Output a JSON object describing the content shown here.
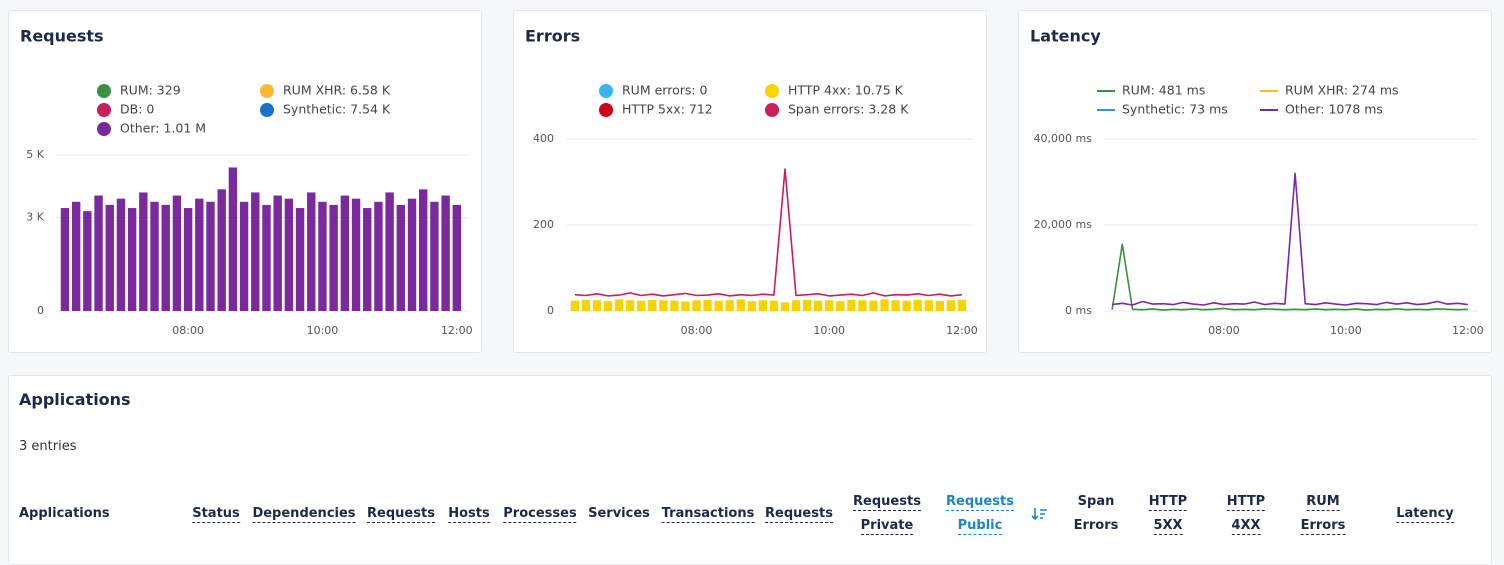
{
  "chart_data": [
    {
      "type": "bar",
      "title": "Requests",
      "legend_marker": "circle",
      "grid": true,
      "xlim": [
        362,
        730
      ],
      "xticks": [
        {
          "value": 480,
          "label": "08:00"
        },
        {
          "value": 600,
          "label": "10:00"
        },
        {
          "value": 720,
          "label": "12:00"
        }
      ],
      "ylim": [
        0,
        5000
      ],
      "yticks": [
        0,
        {
          "value": 3000,
          "label": "3 K"
        },
        {
          "value": 5000,
          "label": "5 K"
        }
      ],
      "x": [
        370,
        380,
        390,
        400,
        410,
        420,
        430,
        440,
        450,
        460,
        470,
        480,
        490,
        500,
        510,
        520,
        530,
        540,
        550,
        560,
        570,
        580,
        590,
        600,
        610,
        620,
        630,
        640,
        650,
        660,
        670,
        680,
        690,
        700,
        710,
        720
      ],
      "series": [
        {
          "name": "RUM: 329",
          "color": "#3a913f"
        },
        {
          "name": "RUM XHR: 6.58 K",
          "color": "#f9b935"
        },
        {
          "name": "DB: 0",
          "color": "#c8205c"
        },
        {
          "name": "Synthetic: 7.54 K",
          "color": "#1a73c9"
        },
        {
          "name": "Other: 1.01 M",
          "color": "#7b2a9e",
          "values": [
            3300,
            3500,
            3200,
            3700,
            3400,
            3600,
            3300,
            3800,
            3500,
            3400,
            3700,
            3300,
            3600,
            3500,
            3900,
            4600,
            3500,
            3800,
            3400,
            3700,
            3600,
            3300,
            3800,
            3500,
            3400,
            3700,
            3600,
            3300,
            3500,
            3800,
            3400,
            3600,
            3900,
            3500,
            3700,
            3400
          ]
        }
      ]
    },
    {
      "type": "bar",
      "title": "Errors",
      "legend_marker": "circle",
      "grid": true,
      "xlim": [
        362,
        730
      ],
      "xticks": [
        {
          "value": 480,
          "label": "08:00"
        },
        {
          "value": 600,
          "label": "10:00"
        },
        {
          "value": 720,
          "label": "12:00"
        }
      ],
      "ylim": [
        0,
        400
      ],
      "yticks": [
        0,
        200,
        400
      ],
      "x": [
        370,
        380,
        390,
        400,
        410,
        420,
        430,
        440,
        450,
        460,
        470,
        480,
        490,
        500,
        510,
        520,
        530,
        540,
        550,
        560,
        570,
        580,
        590,
        600,
        610,
        620,
        630,
        640,
        650,
        660,
        670,
        680,
        690,
        700,
        710,
        720
      ],
      "series": [
        {
          "name": "RUM errors: 0",
          "color": "#36b5ee"
        },
        {
          "name": "HTTP 4xx: 10.75 K",
          "color": "#f5d400",
          "values": [
            24,
            26,
            25,
            23,
            27,
            25,
            24,
            26,
            25,
            24,
            22,
            25,
            26,
            24,
            25,
            27,
            23,
            25,
            24,
            20,
            25,
            26,
            24,
            25,
            23,
            26,
            25,
            24,
            27,
            25,
            24,
            26,
            25,
            23,
            25,
            26
          ]
        },
        {
          "name": "HTTP 5xx: 712",
          "color": "#d0021b"
        },
        {
          "name": "Span errors: 3.28 K",
          "color": "#c91f5a",
          "type": "line",
          "values": [
            38,
            36,
            40,
            35,
            37,
            42,
            36,
            39,
            35,
            38,
            41,
            36,
            37,
            40,
            35,
            38,
            36,
            39,
            37,
            330,
            36,
            38,
            40,
            35,
            37,
            39,
            36,
            42,
            35,
            38,
            37,
            40,
            36,
            39,
            35,
            38
          ]
        }
      ]
    },
    {
      "type": "line",
      "title": "Latency",
      "legend_marker": "line",
      "grid": true,
      "xlim": [
        362,
        730
      ],
      "xticks": [
        {
          "value": 480,
          "label": "08:00"
        },
        {
          "value": 600,
          "label": "10:00"
        },
        {
          "value": 720,
          "label": "12:00"
        }
      ],
      "ylim": [
        0,
        40000
      ],
      "yticks": [
        {
          "value": 0,
          "label": "0 ms"
        },
        {
          "value": 20000,
          "label": "20,000 ms"
        },
        {
          "value": 40000,
          "label": "40,000 ms"
        }
      ],
      "x": [
        370,
        380,
        390,
        400,
        410,
        420,
        430,
        440,
        450,
        460,
        470,
        480,
        490,
        500,
        510,
        520,
        530,
        540,
        550,
        560,
        570,
        580,
        590,
        600,
        610,
        620,
        630,
        640,
        650,
        660,
        670,
        680,
        690,
        700,
        710,
        720
      ],
      "series": [
        {
          "name": "RUM: 481 ms",
          "color": "#3a913f",
          "values": [
            300,
            15500,
            400,
            300,
            500,
            200,
            400,
            300,
            500,
            300,
            400,
            600,
            300,
            400,
            300,
            500,
            400,
            300,
            400,
            300,
            500,
            300,
            400,
            300,
            500,
            200,
            400,
            300,
            500,
            300,
            400,
            300,
            500,
            400,
            300,
            400
          ]
        },
        {
          "name": "RUM XHR: 274 ms",
          "color": "#f0c030"
        },
        {
          "name": "Synthetic: 73 ms",
          "color": "#3f8fd2"
        },
        {
          "name": "Other: 1078 ms",
          "color": "#7b2a9e",
          "values": [
            1500,
            1800,
            1400,
            2200,
            1600,
            1700,
            1500,
            2000,
            1600,
            1400,
            1900,
            1500,
            1700,
            1600,
            2100,
            1500,
            1800,
            1600,
            32000,
            1700,
            1500,
            1900,
            1600,
            1400,
            1800,
            1700,
            1500,
            2000,
            1600,
            1900,
            1500,
            1700,
            2200,
            1600,
            1800,
            1500
          ]
        }
      ]
    }
  ],
  "applications": {
    "title": "Applications",
    "entries": "3 entries",
    "columns": [
      {
        "lines": [
          "Applications"
        ],
        "underlined": false
      },
      {
        "lines": [
          "Status"
        ],
        "underlined": true
      },
      {
        "lines": [
          "Dependencies"
        ],
        "underlined": true
      },
      {
        "lines": [
          "Requests"
        ],
        "underlined": true
      },
      {
        "lines": [
          "Hosts"
        ],
        "underlined": true
      },
      {
        "lines": [
          "Processes"
        ],
        "underlined": true
      },
      {
        "lines": [
          "Services"
        ],
        "underlined": false
      },
      {
        "lines": [
          "Transactions"
        ],
        "underlined": true
      },
      {
        "lines": [
          "Requests"
        ],
        "underlined": true
      },
      {
        "lines": [
          "Requests",
          "Private"
        ],
        "underlined": true
      },
      {
        "lines": [
          "Requests",
          "Public"
        ],
        "underlined": true,
        "active": true
      },
      {
        "lines": [
          "Span",
          "Errors"
        ],
        "underlined": false
      },
      {
        "lines": [
          "HTTP",
          "5XX"
        ],
        "underlined": true
      },
      {
        "lines": [
          "HTTP",
          "4XX"
        ],
        "underlined": true
      },
      {
        "lines": [
          "RUM",
          "Errors"
        ],
        "underlined": true
      },
      {
        "lines": [
          "Latency"
        ],
        "underlined": true
      }
    ]
  }
}
